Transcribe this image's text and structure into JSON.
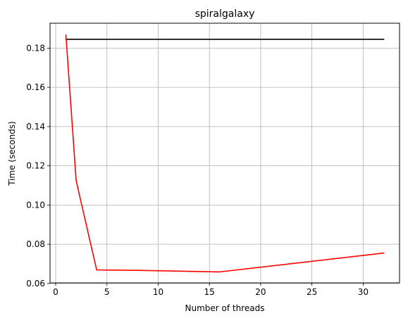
{
  "chart_data": {
    "type": "line",
    "title": "spiralgalaxy",
    "xlabel": "Number of threads",
    "ylabel": "Time (seconds)",
    "xlim": [
      -0.55,
      33.55
    ],
    "ylim": [
      0.0603,
      0.1927
    ],
    "xticks": [
      0,
      5,
      10,
      15,
      20,
      25,
      30
    ],
    "yticks": [
      0.06,
      0.08,
      0.1,
      0.12,
      0.14,
      0.16,
      0.18
    ],
    "ytick_labels": [
      "0.06",
      "0.08",
      "0.10",
      "0.12",
      "0.14",
      "0.16",
      "0.18"
    ],
    "grid": true,
    "series": [
      {
        "color": "#000000",
        "x": [
          1,
          32
        ],
        "y": [
          0.1845,
          0.1845
        ]
      },
      {
        "color": "#ff0000",
        "x": [
          1,
          2,
          4,
          8,
          16,
          32
        ],
        "y": [
          0.1866,
          0.1124,
          0.0669,
          0.0667,
          0.0659,
          0.0755
        ]
      }
    ]
  }
}
